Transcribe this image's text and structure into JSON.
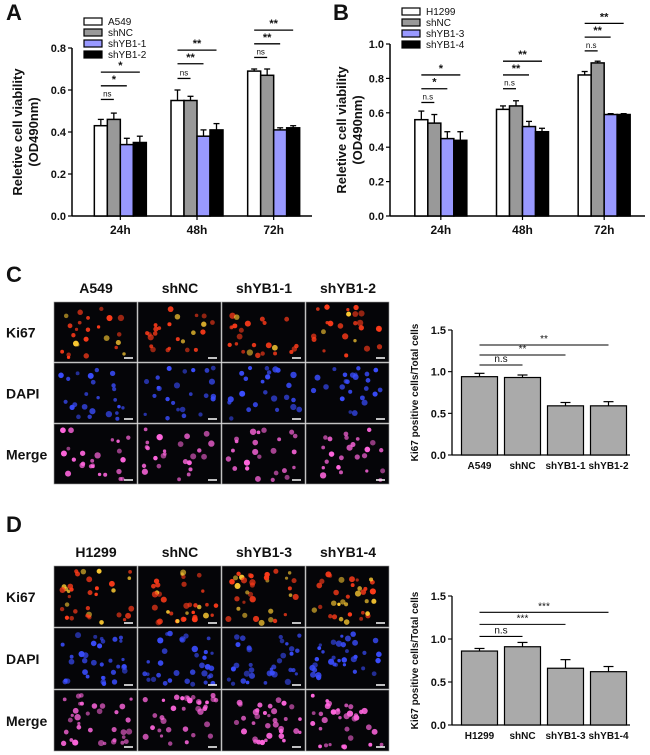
{
  "panels": {
    "A": {
      "label": "A"
    },
    "B": {
      "label": "B"
    },
    "C": {
      "label": "C",
      "columns": [
        "A549",
        "shNC",
        "shYB1-1",
        "shYB1-2"
      ],
      "rows": [
        "Ki67",
        "DAPI",
        "Merge"
      ]
    },
    "D": {
      "label": "D",
      "columns": [
        "H1299",
        "shNC",
        "shYB1-3",
        "shYB1-4"
      ],
      "rows": [
        "Ki67",
        "DAPI",
        "Merge"
      ]
    }
  },
  "colors": {
    "control": "#ffffff",
    "shNC": "#999999",
    "sh1": "#9999ff",
    "sh2": "#000000",
    "grey_bar": "#aaaaaa",
    "red_stain": "#ff3b1a",
    "blue_stain": "#3a4dff",
    "pink_stain": "#ff66dd"
  },
  "chart_data": [
    {
      "id": "A",
      "type": "bar",
      "ylabel": "Reletive cell viability\n(OD490nm)",
      "ylim": [
        0,
        0.8
      ],
      "yticks": [
        "0.0",
        "0.2",
        "0.4",
        "0.6",
        "0.8"
      ],
      "categories": [
        "24h",
        "48h",
        "72h"
      ],
      "series": [
        {
          "name": "A549",
          "values": [
            0.43,
            0.55,
            0.69
          ],
          "errors": [
            0.03,
            0.05,
            0.01
          ]
        },
        {
          "name": "shNC",
          "values": [
            0.46,
            0.55,
            0.67
          ],
          "errors": [
            0.03,
            0.02,
            0.03
          ]
        },
        {
          "name": "shYB1-1",
          "values": [
            0.34,
            0.38,
            0.41
          ],
          "errors": [
            0.03,
            0.03,
            0.01
          ]
        },
        {
          "name": "shYB1-2",
          "values": [
            0.35,
            0.41,
            0.42
          ],
          "errors": [
            0.03,
            0.03,
            0.01
          ]
        }
      ],
      "significance": [
        {
          "group": 0,
          "from": 0,
          "to": 1,
          "level": 0.555,
          "text": "ns"
        },
        {
          "group": 0,
          "from": 0,
          "to": 2,
          "level": 0.62,
          "text": "*"
        },
        {
          "group": 0,
          "from": 0,
          "to": 3,
          "level": 0.685,
          "text": "*"
        },
        {
          "group": 1,
          "from": 0,
          "to": 1,
          "level": 0.655,
          "text": "ns"
        },
        {
          "group": 1,
          "from": 0,
          "to": 2,
          "level": 0.725,
          "text": "**"
        },
        {
          "group": 1,
          "from": 0,
          "to": 3,
          "level": 0.79,
          "text": "**"
        },
        {
          "group": 2,
          "from": 0,
          "to": 1,
          "level": 0.755,
          "text": "ns"
        },
        {
          "group": 2,
          "from": 0,
          "to": 2,
          "level": 0.82,
          "text": "**"
        },
        {
          "group": 2,
          "from": 0,
          "to": 3,
          "level": 0.885,
          "text": "**"
        }
      ]
    },
    {
      "id": "B",
      "type": "bar",
      "ylabel": "Reletive cell viability\n(OD490nm)",
      "ylim": [
        0,
        1.0
      ],
      "yticks": [
        "0.0",
        "0.2",
        "0.4",
        "0.6",
        "0.8",
        "1.0"
      ],
      "categories": [
        "24h",
        "48h",
        "72h"
      ],
      "series": [
        {
          "name": "H1299",
          "values": [
            0.56,
            0.62,
            0.82
          ],
          "errors": [
            0.05,
            0.02,
            0.02
          ]
        },
        {
          "name": "shNC",
          "values": [
            0.54,
            0.64,
            0.89
          ],
          "errors": [
            0.05,
            0.03,
            0.01
          ]
        },
        {
          "name": "shYB1-3",
          "values": [
            0.45,
            0.52,
            0.59
          ],
          "errors": [
            0.04,
            0.03,
            0.005
          ]
        },
        {
          "name": "shYB1-4",
          "values": [
            0.44,
            0.49,
            0.59
          ],
          "errors": [
            0.05,
            0.02,
            0.005
          ]
        }
      ],
      "significance": [
        {
          "group": 0,
          "from": 0,
          "to": 1,
          "level": 0.66,
          "text": "n.s"
        },
        {
          "group": 0,
          "from": 0,
          "to": 2,
          "level": 0.74,
          "text": "*"
        },
        {
          "group": 0,
          "from": 0,
          "to": 3,
          "level": 0.82,
          "text": "*"
        },
        {
          "group": 1,
          "from": 0,
          "to": 1,
          "level": 0.74,
          "text": "n.s"
        },
        {
          "group": 1,
          "from": 0,
          "to": 2,
          "level": 0.82,
          "text": "**"
        },
        {
          "group": 1,
          "from": 0,
          "to": 3,
          "level": 0.9,
          "text": "**"
        },
        {
          "group": 2,
          "from": 0,
          "to": 1,
          "level": 0.96,
          "text": "n.s"
        },
        {
          "group": 2,
          "from": 0,
          "to": 2,
          "level": 1.04,
          "text": "**"
        },
        {
          "group": 2,
          "from": 0,
          "to": 3,
          "level": 1.12,
          "text": "**"
        }
      ]
    },
    {
      "id": "C",
      "type": "bar",
      "ylabel": "Ki67 positive cells/Total cells",
      "ylim": [
        0,
        1.5
      ],
      "yticks": [
        "0.0",
        "0.5",
        "1.0",
        "1.5"
      ],
      "categories": [
        "A549",
        "shNC",
        "shYB1-1",
        "shYB1-2"
      ],
      "values": [
        0.94,
        0.93,
        0.59,
        0.59
      ],
      "errors": [
        0.04,
        0.03,
        0.04,
        0.05
      ],
      "significance": [
        {
          "from": 0,
          "to": 1,
          "level": 1.08,
          "text": "n.s"
        },
        {
          "from": 0,
          "to": 2,
          "level": 1.2,
          "text": "**"
        },
        {
          "from": 0,
          "to": 3,
          "level": 1.32,
          "text": "**"
        }
      ]
    },
    {
      "id": "D",
      "type": "bar",
      "ylabel": "Ki67 positive cells/Total cells",
      "ylim": [
        0,
        1.5
      ],
      "yticks": [
        "0.0",
        "0.5",
        "1.0",
        "1.5"
      ],
      "categories": [
        "H1299",
        "shNC",
        "shYB1-3",
        "shYB1-4"
      ],
      "values": [
        0.86,
        0.91,
        0.66,
        0.62
      ],
      "errors": [
        0.03,
        0.05,
        0.1,
        0.06
      ],
      "significance": [
        {
          "from": 0,
          "to": 1,
          "level": 1.03,
          "text": "n.s"
        },
        {
          "from": 0,
          "to": 2,
          "level": 1.17,
          "text": "***"
        },
        {
          "from": 0,
          "to": 3,
          "level": 1.31,
          "text": "***"
        }
      ]
    }
  ]
}
